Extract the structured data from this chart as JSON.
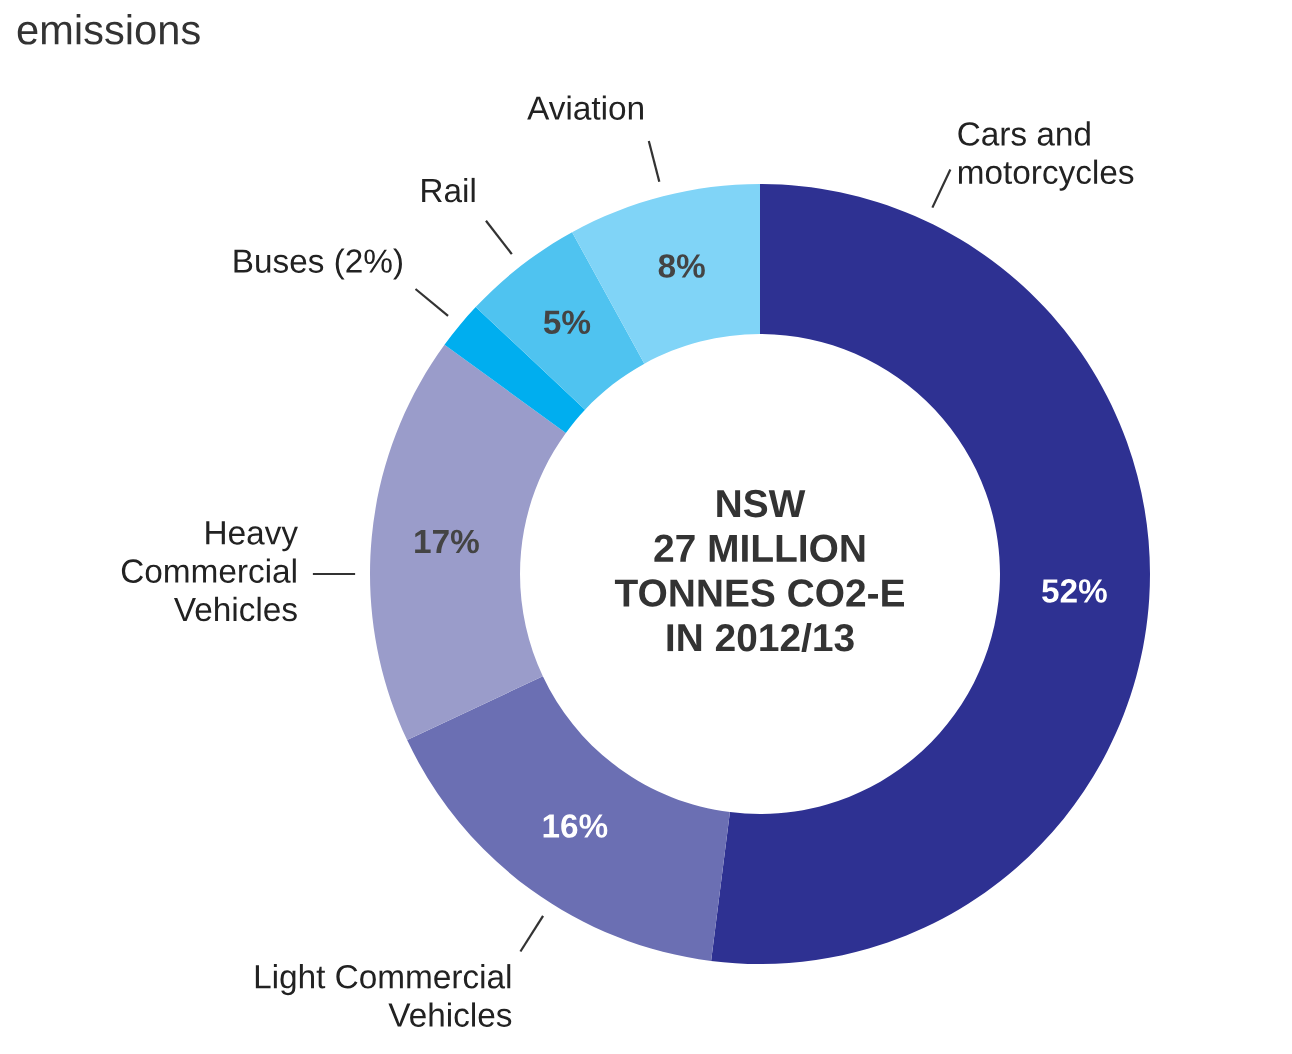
{
  "chart_data": {
    "type": "donut",
    "title": "emissions",
    "categories": [
      "Cars and\nmotorcycles",
      "Light Commercial\nVehicles",
      "Heavy\nCommercial\nVehicles",
      "Buses",
      "Rail",
      "Aviation"
    ],
    "values": [
      52,
      16,
      17,
      2,
      5,
      8
    ],
    "colors": [
      "#2e3192",
      "#6b6fb3",
      "#9a9cca",
      "#00aeef",
      "#4fc3f0",
      "#80d4f7"
    ],
    "value_labels": [
      "52%",
      "16%",
      "17%",
      "(2%)",
      "5%",
      "8%"
    ],
    "annotations": [
      "NSW\n27 MILLION\nTONNES CO2-E\nIN 2012/13"
    ],
    "legend": false
  }
}
